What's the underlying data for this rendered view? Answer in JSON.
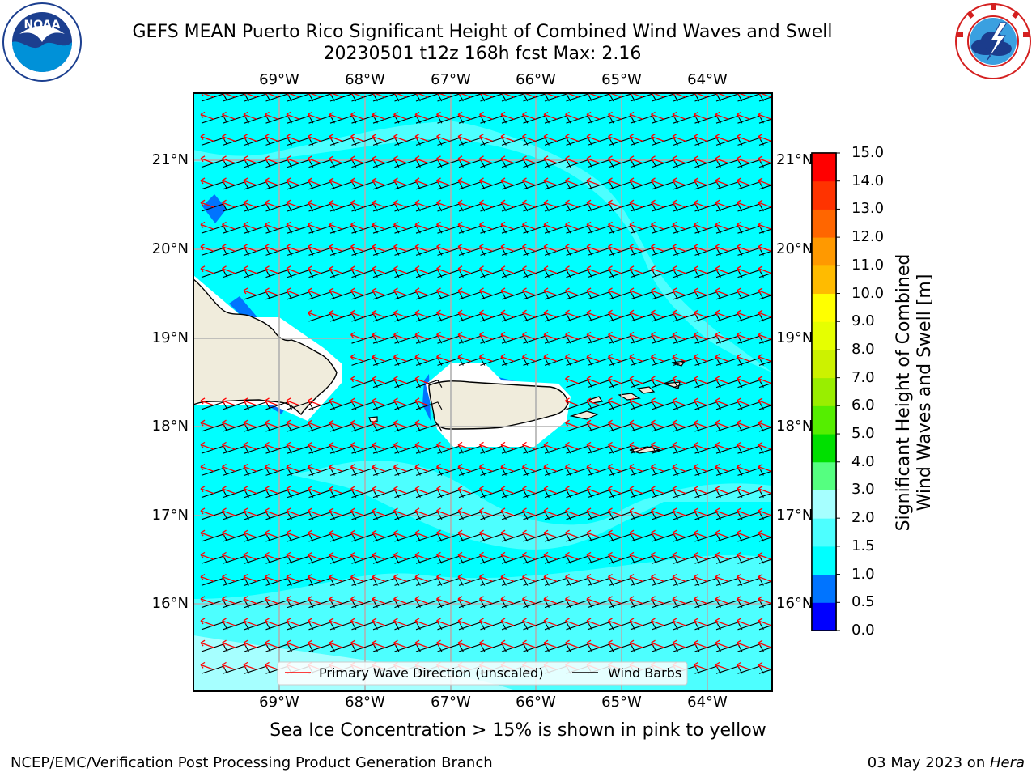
{
  "header": {
    "title_line1": "GEFS MEAN Puerto Rico Significant Height of Combined Wind Waves and Swell",
    "title_line2": "20230501 t12z 168h fcst   Max: 2.16"
  },
  "logos": {
    "left": {
      "name": "noaa-logo",
      "text": "NOAA",
      "ring_text": "NATIONAL OCEANIC AND ATMOSPHERIC ADMINISTRATION · U.S. DEPARTMENT OF COMMERCE"
    },
    "right": {
      "name": "nws-logo",
      "ring_text": "NATIONAL WEATHER SERVICE"
    }
  },
  "map": {
    "lon_labels": [
      "69°W",
      "68°W",
      "67°W",
      "66°W",
      "65°W",
      "64°W"
    ],
    "lat_labels": [
      "21°N",
      "20°N",
      "19°N",
      "18°N",
      "17°N",
      "16°N"
    ],
    "legend": {
      "wave_direction": "Primary Wave Direction (unscaled)",
      "wind_barbs": "Wind Barbs"
    },
    "colors": {
      "ocean_main": "#00ffff",
      "ocean_light": "#4dffff",
      "ocean_lighter": "#a6ffff",
      "land": "#f0ecdc",
      "arrow": "#ff0000",
      "barb": "#000000"
    }
  },
  "colorbar": {
    "title_line1": "Significant Height of Combined",
    "title_line2": "Wind Waves and Swell [m]",
    "ticks": [
      "15.0",
      "14.0",
      "13.0",
      "12.0",
      "11.0",
      "10.0",
      "9.0",
      "8.0",
      "7.0",
      "6.0",
      "5.0",
      "4.0",
      "3.0",
      "2.0",
      "1.5",
      "1.0",
      "0.5",
      "0.0"
    ],
    "colors": [
      "#0000ff",
      "#0074ff",
      "#00ffff",
      "#4dffff",
      "#a6ffff",
      "#55ff80",
      "#00e000",
      "#55ee00",
      "#99ee00",
      "#ccf200",
      "#e6ff00",
      "#ffff00",
      "#ffbb00",
      "#ff9900",
      "#ff6600",
      "#ff3300",
      "#ff0000"
    ]
  },
  "note": "Sea Ice Concentration > 15% is shown in pink to yellow",
  "footer": {
    "left": "NCEP/EMC/Verification Post Processing Product Generation Branch",
    "right_prefix": "03 May 2023 on ",
    "right_machine": "Hera"
  }
}
